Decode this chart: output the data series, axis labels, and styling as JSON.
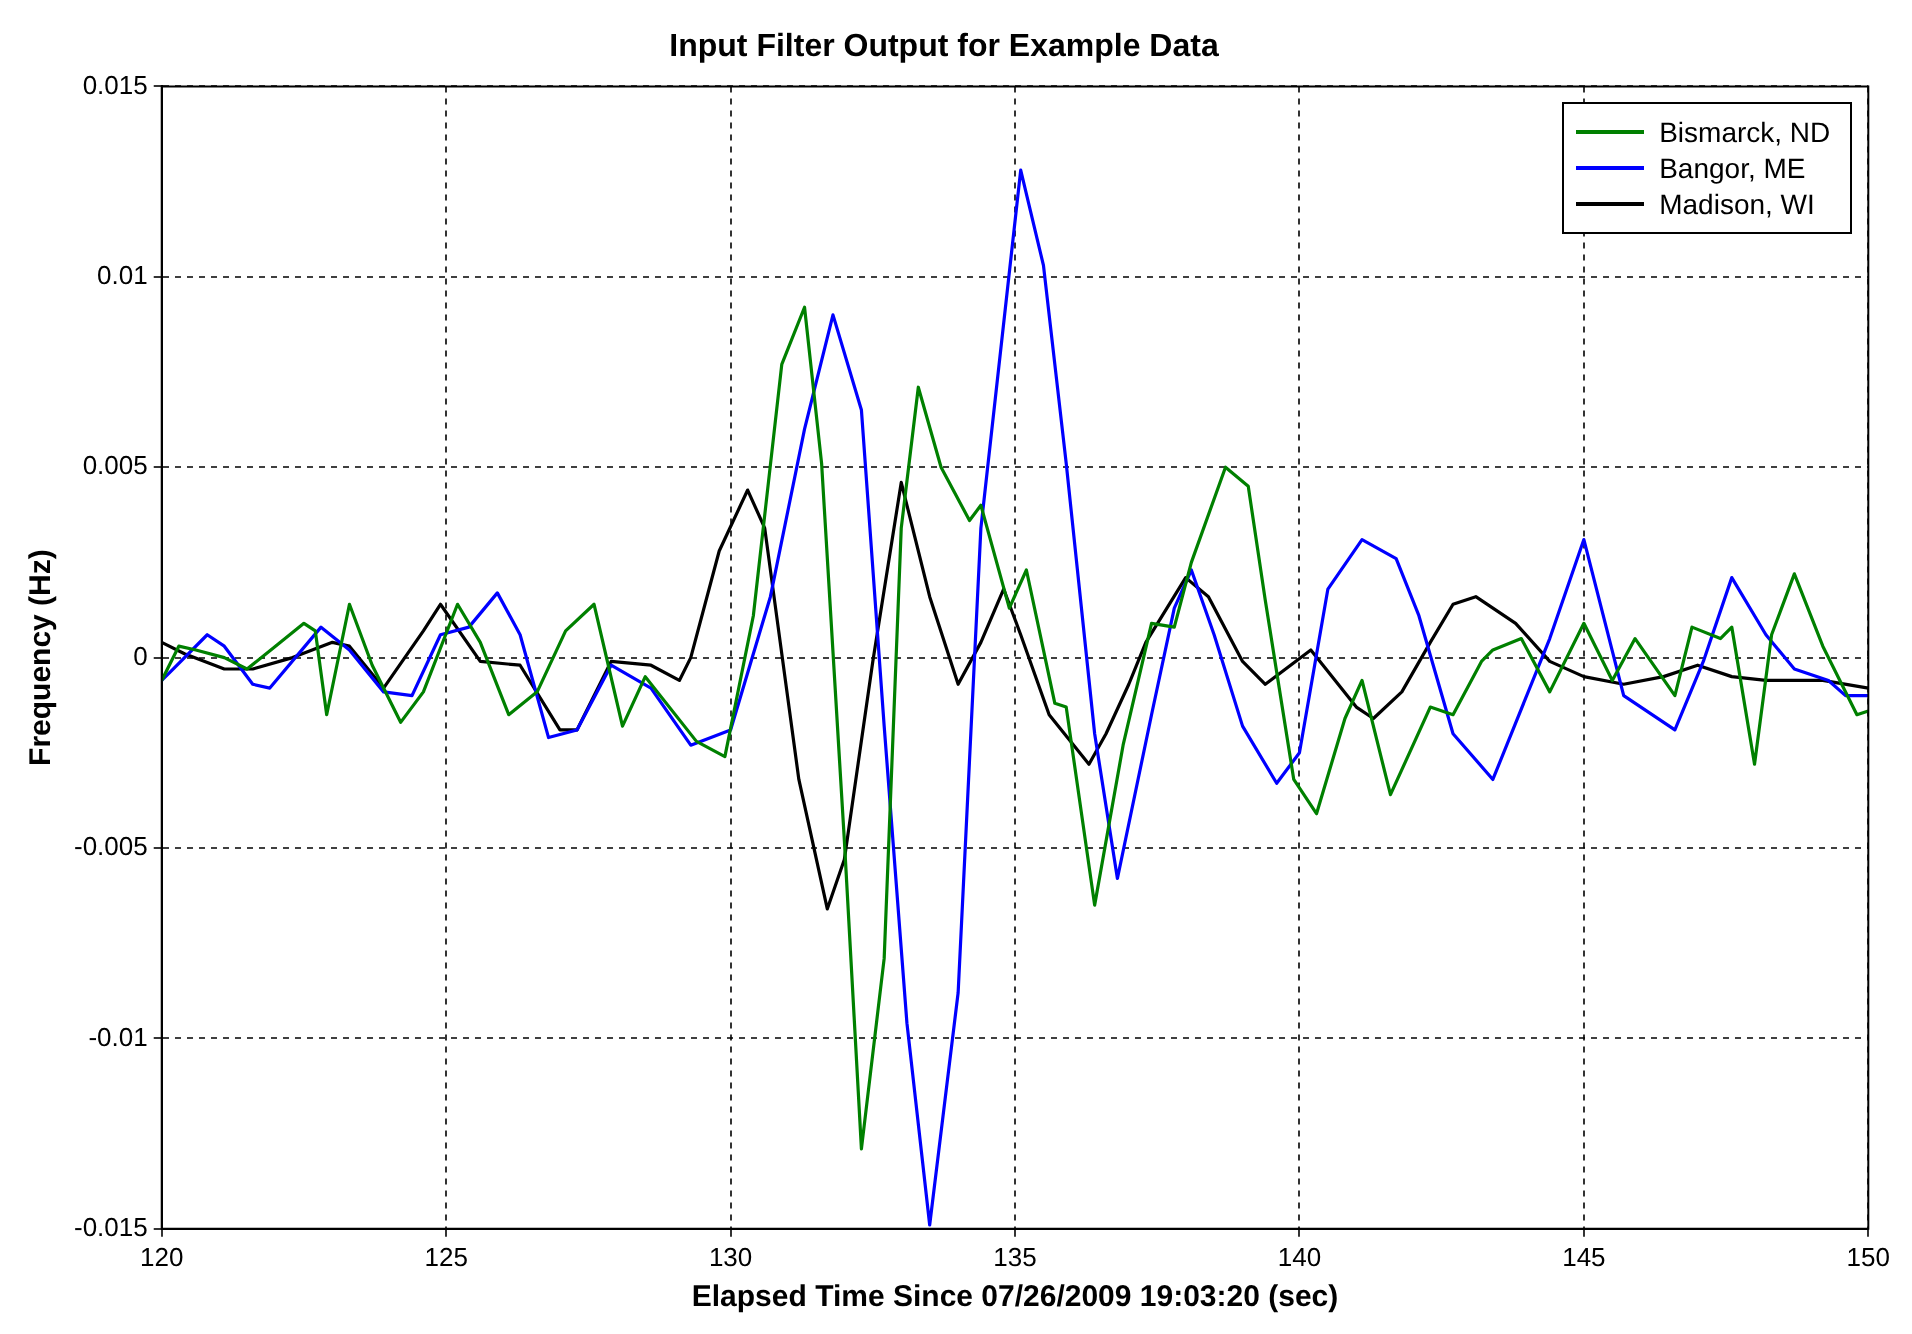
{
  "chart_data": {
    "type": "line",
    "title": "Input Filter Output for Example Data",
    "xlabel": "Elapsed Time Since 07/26/2009 19:03:20 (sec)",
    "ylabel": "Frequency (Hz)",
    "xlim": [
      120,
      150
    ],
    "xticks": [
      120,
      125,
      130,
      135,
      140,
      145,
      150
    ],
    "ylim": [
      -0.015,
      0.015
    ],
    "yticks": [
      -0.015,
      -0.01,
      -0.005,
      0,
      0.005,
      0.01,
      0.015
    ],
    "grid": true,
    "legend": "top right",
    "line_style": "solid",
    "series": [
      {
        "name": "Bismarck, ND",
        "color": "#008000",
        "x": [
          120.0,
          120.3,
          120.6,
          121.1,
          121.5,
          122.0,
          122.5,
          122.7,
          122.9,
          123.3,
          123.7,
          124.2,
          124.6,
          125.2,
          125.6,
          126.1,
          126.6,
          127.1,
          127.6,
          128.1,
          128.5,
          129.4,
          129.9,
          130.4,
          130.9,
          131.3,
          131.6,
          132.0,
          132.3,
          132.7,
          133.0,
          133.3,
          133.7,
          134.2,
          134.4,
          134.9,
          135.2,
          135.7,
          135.9,
          136.4,
          136.9,
          137.4,
          137.8,
          138.1,
          138.7,
          139.1,
          139.4,
          139.9,
          140.3,
          140.8,
          141.1,
          141.6,
          142.3,
          142.7,
          143.2,
          143.4,
          143.9,
          144.4,
          145.0,
          145.5,
          145.9,
          146.6,
          146.9,
          147.4,
          147.6,
          148.0,
          148.3,
          148.7,
          149.2,
          149.8,
          150.0
        ],
        "values": [
          -0.0006,
          0.0003,
          0.0002,
          0,
          -0.0003,
          0.0003,
          0.0009,
          0.0007,
          -0.0015,
          0.0014,
          -0.0002,
          -0.0017,
          -0.0009,
          0.0014,
          0.0004,
          -0.0015,
          -0.0009,
          0.0007,
          0.0014,
          -0.0018,
          -0.0005,
          -0.0022,
          -0.0026,
          0.0011,
          0.0077,
          0.0092,
          0.0051,
          -0.0048,
          -0.0129,
          -0.0079,
          0.0034,
          0.0071,
          0.005,
          0.0036,
          0.004,
          0.0013,
          0.0023,
          -0.0012,
          -0.0013,
          -0.0065,
          -0.0023,
          0.0009,
          0.0008,
          0.0025,
          0.005,
          0.0045,
          0.0015,
          -0.0032,
          -0.0041,
          -0.0016,
          -0.0006,
          -0.0036,
          -0.0013,
          -0.0015,
          -0.0001,
          0.0002,
          0.0005,
          -0.0009,
          0.0009,
          -0.0006,
          0.0005,
          -0.001,
          0.0008,
          0.0005,
          0.0008,
          -0.0028,
          0.0006,
          0.0022,
          0.0003,
          -0.0015,
          -0.0014
        ]
      },
      {
        "name": "Bangor, ME",
        "color": "#0000ff",
        "x": [
          120.0,
          120.2,
          120.8,
          121.1,
          121.6,
          121.9,
          122.8,
          123.3,
          123.9,
          124.4,
          124.9,
          125.4,
          125.9,
          126.3,
          126.8,
          127.3,
          127.9,
          128.6,
          129.3,
          130.0,
          130.7,
          131.3,
          131.8,
          132.3,
          132.7,
          133.1,
          133.5,
          134.0,
          134.4,
          135.1,
          135.5,
          135.9,
          136.4,
          136.8,
          137.4,
          137.8,
          138.1,
          138.5,
          139.0,
          139.6,
          140.0,
          140.5,
          141.1,
          141.7,
          142.1,
          142.7,
          143.4,
          144.4,
          145.0,
          145.7,
          146.6,
          147.1,
          147.6,
          148.2,
          148.7,
          149.3,
          149.6,
          150.0
        ],
        "values": [
          -0.0006,
          -0.0003,
          0.0006,
          0.0003,
          -0.0007,
          -0.0008,
          0.0008,
          0.0002,
          -0.0009,
          -0.001,
          0.0006,
          0.0008,
          0.0017,
          0.0006,
          -0.0021,
          -0.0019,
          -0.0002,
          -0.0008,
          -0.0023,
          -0.0019,
          0.0016,
          0.006,
          0.009,
          0.0065,
          -0.0018,
          -0.0096,
          -0.0149,
          -0.0088,
          0.0034,
          0.0128,
          0.0103,
          0.0051,
          -0.002,
          -0.0058,
          -0.0015,
          0.0013,
          0.0023,
          0.0006,
          -0.0018,
          -0.0033,
          -0.0025,
          0.0018,
          0.0031,
          0.0026,
          0.0011,
          -0.002,
          -0.0032,
          0.0005,
          0.0031,
          -0.001,
          -0.0019,
          -0.0001,
          0.0021,
          0.0006,
          -0.0003,
          -0.0006,
          -0.001,
          -0.001
        ]
      },
      {
        "name": "Madison, WI",
        "color": "#000000",
        "x": [
          120.0,
          120.4,
          121.1,
          121.6,
          122.3,
          123.0,
          123.3,
          123.9,
          124.6,
          124.9,
          125.6,
          126.3,
          127.0,
          127.3,
          127.9,
          128.6,
          129.1,
          129.3,
          129.8,
          130.3,
          130.6,
          131.2,
          131.7,
          132.0,
          132.5,
          133.0,
          133.5,
          134.0,
          134.4,
          134.8,
          135.1,
          135.6,
          136.3,
          136.6,
          137.0,
          137.3,
          138.0,
          138.4,
          139.0,
          139.4,
          140.2,
          141.0,
          141.3,
          141.8,
          142.3,
          142.7,
          143.1,
          143.8,
          144.4,
          145.0,
          145.7,
          146.4,
          147.0,
          147.6,
          148.2,
          149.2,
          150.0
        ],
        "values": [
          0.0004,
          0.0001,
          -0.0003,
          -0.0003,
          0,
          0.0004,
          0.0003,
          -0.0008,
          0.0007,
          0.0014,
          -0.0001,
          -0.0002,
          -0.0019,
          -0.0019,
          -0.0001,
          -0.0002,
          -0.0006,
          0,
          0.0028,
          0.0044,
          0.0034,
          -0.0032,
          -0.0066,
          -0.0053,
          -0.0001,
          0.0046,
          0.0016,
          -0.0007,
          0.0004,
          0.0018,
          0.0006,
          -0.0015,
          -0.0028,
          -0.002,
          -0.0007,
          0.0004,
          0.0021,
          0.0016,
          -0.0001,
          -0.0007,
          0.0002,
          -0.0013,
          -0.0016,
          -0.0009,
          0.0004,
          0.0014,
          0.0016,
          0.0009,
          -0.0001,
          -0.0005,
          -0.0007,
          -0.0005,
          -0.0002,
          -0.0005,
          -0.0006,
          -0.0006,
          -0.0008
        ]
      }
    ]
  }
}
